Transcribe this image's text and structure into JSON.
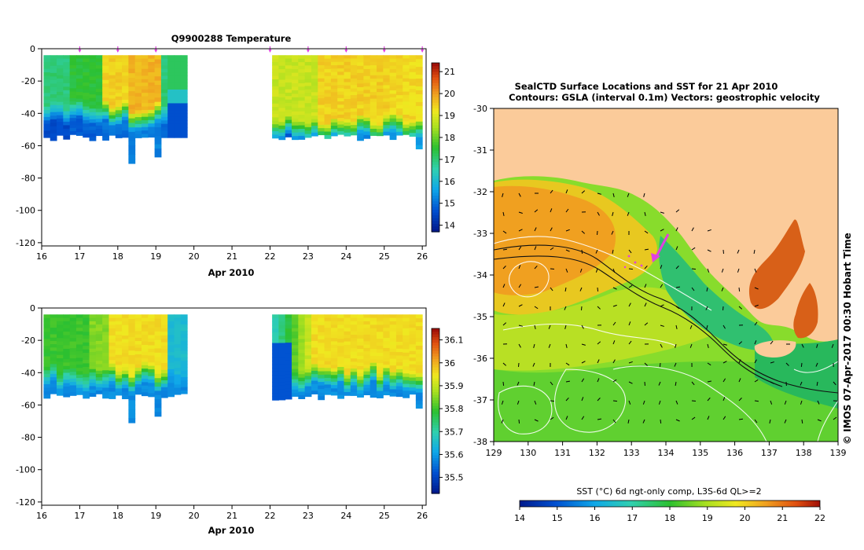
{
  "chart_data": [
    {
      "type": "heatmap",
      "title": "Q9900288  Temperature",
      "xlabel": "Apr 2010",
      "ylabel": "",
      "x_ticks": [
        "16",
        "17",
        "18",
        "19",
        "20",
        "21",
        "22",
        "23",
        "24",
        "25",
        "26"
      ],
      "y_ticks": [
        "0",
        "-20",
        "-40",
        "-60",
        "-80",
        "-100",
        "-120"
      ],
      "xlim": [
        16,
        26.1
      ],
      "ylim": [
        -122,
        0
      ],
      "colorbar": {
        "ticks": [
          "14",
          "15",
          "16",
          "17",
          "18",
          "19",
          "20",
          "21"
        ],
        "range": [
          13.7,
          21.4
        ]
      },
      "profile_markers_day": [
        17,
        18,
        19,
        22,
        23,
        24,
        25,
        26
      ],
      "data_gap_days": [
        19.75,
        22.0
      ],
      "profiles": [
        {
          "day": 16.2,
          "depth": 55,
          "surface_value": 17.0,
          "bottom_value": 14.5
        },
        {
          "day": 17.0,
          "depth": 55,
          "surface_value": 17.5,
          "bottom_value": 14.8
        },
        {
          "day": 18.0,
          "depth": 55,
          "surface_value": 19.5,
          "bottom_value": 15.0
        },
        {
          "day": 18.5,
          "depth": 71,
          "surface_value": 19.8,
          "bottom_value": 15.2
        },
        {
          "day": 19.5,
          "depth": 55,
          "surface_value": 17.0,
          "bottom_value": 14.8
        },
        {
          "day": 22.5,
          "depth": 57,
          "surface_value": 18.8,
          "bottom_value": 14.7
        },
        {
          "day": 24.0,
          "depth": 56,
          "surface_value": 19.5,
          "bottom_value": 15.3
        },
        {
          "day": 26.0,
          "depth": 62,
          "surface_value": 19.4,
          "bottom_value": 15.5
        }
      ]
    },
    {
      "type": "heatmap",
      "title": "",
      "xlabel": "Apr 2010",
      "ylabel": "",
      "x_ticks": [
        "16",
        "17",
        "18",
        "19",
        "20",
        "21",
        "22",
        "23",
        "24",
        "25",
        "26"
      ],
      "y_ticks": [
        "0",
        "-20",
        "-40",
        "-60",
        "-80",
        "-100",
        "-120"
      ],
      "xlim": [
        16,
        26.1
      ],
      "ylim": [
        -122,
        0
      ],
      "colorbar": {
        "ticks": [
          "35.5",
          "35.6",
          "35.7",
          "35.8",
          "35.9",
          "36",
          "36.1"
        ],
        "range": [
          35.43,
          36.15
        ]
      },
      "data_gap_days": [
        19.75,
        22.0
      ]
    },
    {
      "type": "heatmap",
      "title_line1": "SealCTD Surface Locations and SST for 21 Apr 2010",
      "title_line2": "Contours: GSLA (interval 0.1m) Vectors: geostrophic velocity",
      "x_ticks": [
        "129",
        "130",
        "131",
        "132",
        "133",
        "134",
        "135",
        "136",
        "137",
        "138",
        "139"
      ],
      "y_ticks": [
        "-30",
        "-31",
        "-32",
        "-33",
        "-34",
        "-35",
        "-36",
        "-37",
        "-38"
      ],
      "xlim": [
        129,
        139
      ],
      "ylim": [
        -38,
        -30
      ],
      "colorbar": {
        "label": "SST (°C) 6d ngt-only comp, L3S-6d QL>=2",
        "ticks": [
          "14",
          "15",
          "16",
          "17",
          "18",
          "19",
          "20",
          "21",
          "22"
        ],
        "range": [
          14,
          22
        ]
      },
      "seal_track": [
        [
          133.6,
          -33.6
        ],
        [
          133.8,
          -33.3
        ],
        [
          134.0,
          -33.0
        ]
      ],
      "side_text": "© IMOS 07-Apr-2017 00:30 Hobart Time"
    }
  ],
  "colors": {
    "land": "#FBCB9A",
    "marker": "#E040E0",
    "axis": "#000000"
  }
}
